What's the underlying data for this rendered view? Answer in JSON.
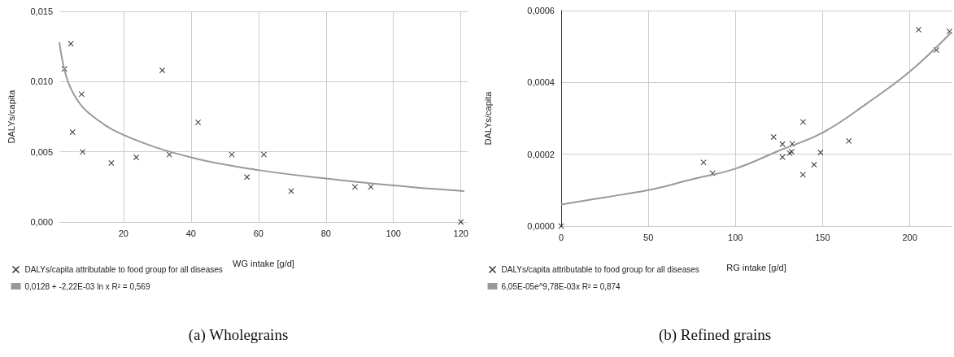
{
  "chart_data": [
    {
      "type": "scatter",
      "title": "(a) Wholegrains",
      "xlabel": "WG intake [g/d]",
      "ylabel": "DALYs/capita",
      "xlim": [
        1,
        122
      ],
      "xticks": [
        20,
        40,
        60,
        80,
        100,
        120
      ],
      "ylim": [
        0,
        0.015
      ],
      "yticks": [
        {
          "value": 0,
          "label": "0,000"
        },
        {
          "value": 0.005,
          "label": "0,005"
        },
        {
          "value": 0.01,
          "label": "0,010"
        },
        {
          "value": 0.015,
          "label": "0,015"
        }
      ],
      "grid": true,
      "legend": "bottom left",
      "marker": "cross",
      "series": [
        {
          "name": "DALYs/capita attributable to food group for all diseases",
          "color": "#000000",
          "x": [
            2.5,
            4.4,
            7.6,
            4.9,
            7.9,
            16.4,
            23.8,
            31.5,
            33.6,
            42.1,
            52.1,
            56.6,
            61.6,
            69.7,
            88.6,
            93.3,
            120
          ],
          "values": [
            0.0109,
            0.0127,
            0.0091,
            0.0064,
            0.005,
            0.0042,
            0.0046,
            0.0108,
            0.0048,
            0.0071,
            0.0048,
            0.0032,
            0.0048,
            0.0022,
            0.0025,
            0.0025,
            0
          ]
        },
        {
          "type": "line",
          "marker": "none",
          "name": "0,0128 + -2,22E-03 ln x R² = 0,569",
          "color": "#999999",
          "x": [
            1,
            3,
            6,
            10,
            20,
            40,
            60,
            80,
            100,
            121
          ],
          "values": [
            0.0128,
            0.0104,
            0.0088,
            0.0077,
            0.0062,
            0.0046,
            0.0037,
            0.0031,
            0.0026,
            0.0022
          ]
        }
      ]
    },
    {
      "type": "scatter",
      "title": "(b) Refined grains",
      "xlabel": "RG intake [g/d]",
      "ylabel": "DALYs/capita",
      "xlim": [
        0,
        224
      ],
      "xticks": [
        0,
        50,
        100,
        150,
        200
      ],
      "ylim": [
        0,
        0.0006
      ],
      "yticks": [
        {
          "value": 0,
          "label": "0,0000"
        },
        {
          "value": 0.0002,
          "label": "0,0002"
        },
        {
          "value": 0.0004,
          "label": "0,0004"
        },
        {
          "value": 0.0006,
          "label": "0,0006"
        }
      ],
      "grid": true,
      "legend": "bottom left",
      "marker": "cross",
      "series": [
        {
          "name": "DALYs/capita attributable to food group for all diseases",
          "color": "#000000",
          "x": [
            0,
            81.7,
            86.9,
            121.9,
            127.0,
            127.0,
            132.6,
            131.1,
            132.2,
            138.8,
            138.7,
            145.1,
            148.8,
            165.1,
            205.1,
            215.3,
            222.8
          ],
          "values": [
            0,
            0.000177,
            0.000147,
            0.000248,
            0.000228,
            0.000192,
            0.000229,
            0.000203,
            0.000207,
            0.00029,
            0.000143,
            0.000171,
            0.000205,
            0.000237,
            0.000547,
            0.00049,
            0.000542
          ]
        },
        {
          "type": "line",
          "marker": "none",
          "name": "6,05E-05e^9,78E-03x R² = 0,874",
          "color": "#999999",
          "x": [
            0,
            25,
            50,
            75,
            100,
            125,
            150,
            175,
            200,
            224
          ],
          "values": [
            6e-05,
            8e-05,
            0.0001,
            0.00013,
            0.00016,
            0.00021,
            0.00026,
            0.00034,
            0.00043,
            0.00054
          ]
        }
      ]
    }
  ]
}
